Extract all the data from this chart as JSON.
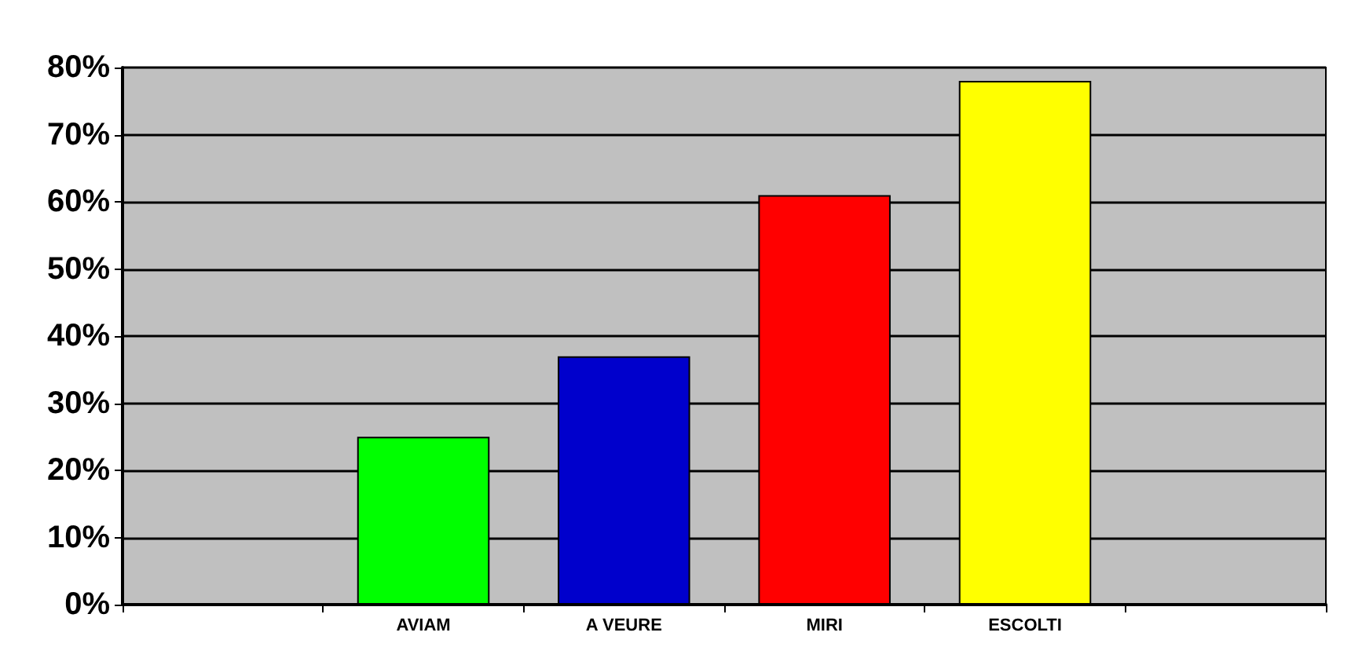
{
  "chart_data": {
    "type": "bar",
    "categories": [
      null,
      "AVIAM",
      "A VEURE",
      "MIRI",
      "ESCOLTI",
      null
    ],
    "values": [
      null,
      25,
      37,
      61,
      78,
      null
    ],
    "colors": [
      "#808080",
      "#00ff00",
      "#0000cc",
      "#ff0000",
      "#ffff00",
      "#808080"
    ],
    "ylim": [
      0,
      80
    ],
    "yticks": [
      {
        "value": 0,
        "label": "0%"
      },
      {
        "value": 10,
        "label": "10%"
      },
      {
        "value": 20,
        "label": "20%"
      },
      {
        "value": 30,
        "label": "30%"
      },
      {
        "value": 40,
        "label": "40%"
      },
      {
        "value": 50,
        "label": "50%"
      },
      {
        "value": 60,
        "label": "60%"
      },
      {
        "value": 70,
        "label": "70%"
      },
      {
        "value": 80,
        "label": "80%"
      }
    ],
    "grid": true
  }
}
